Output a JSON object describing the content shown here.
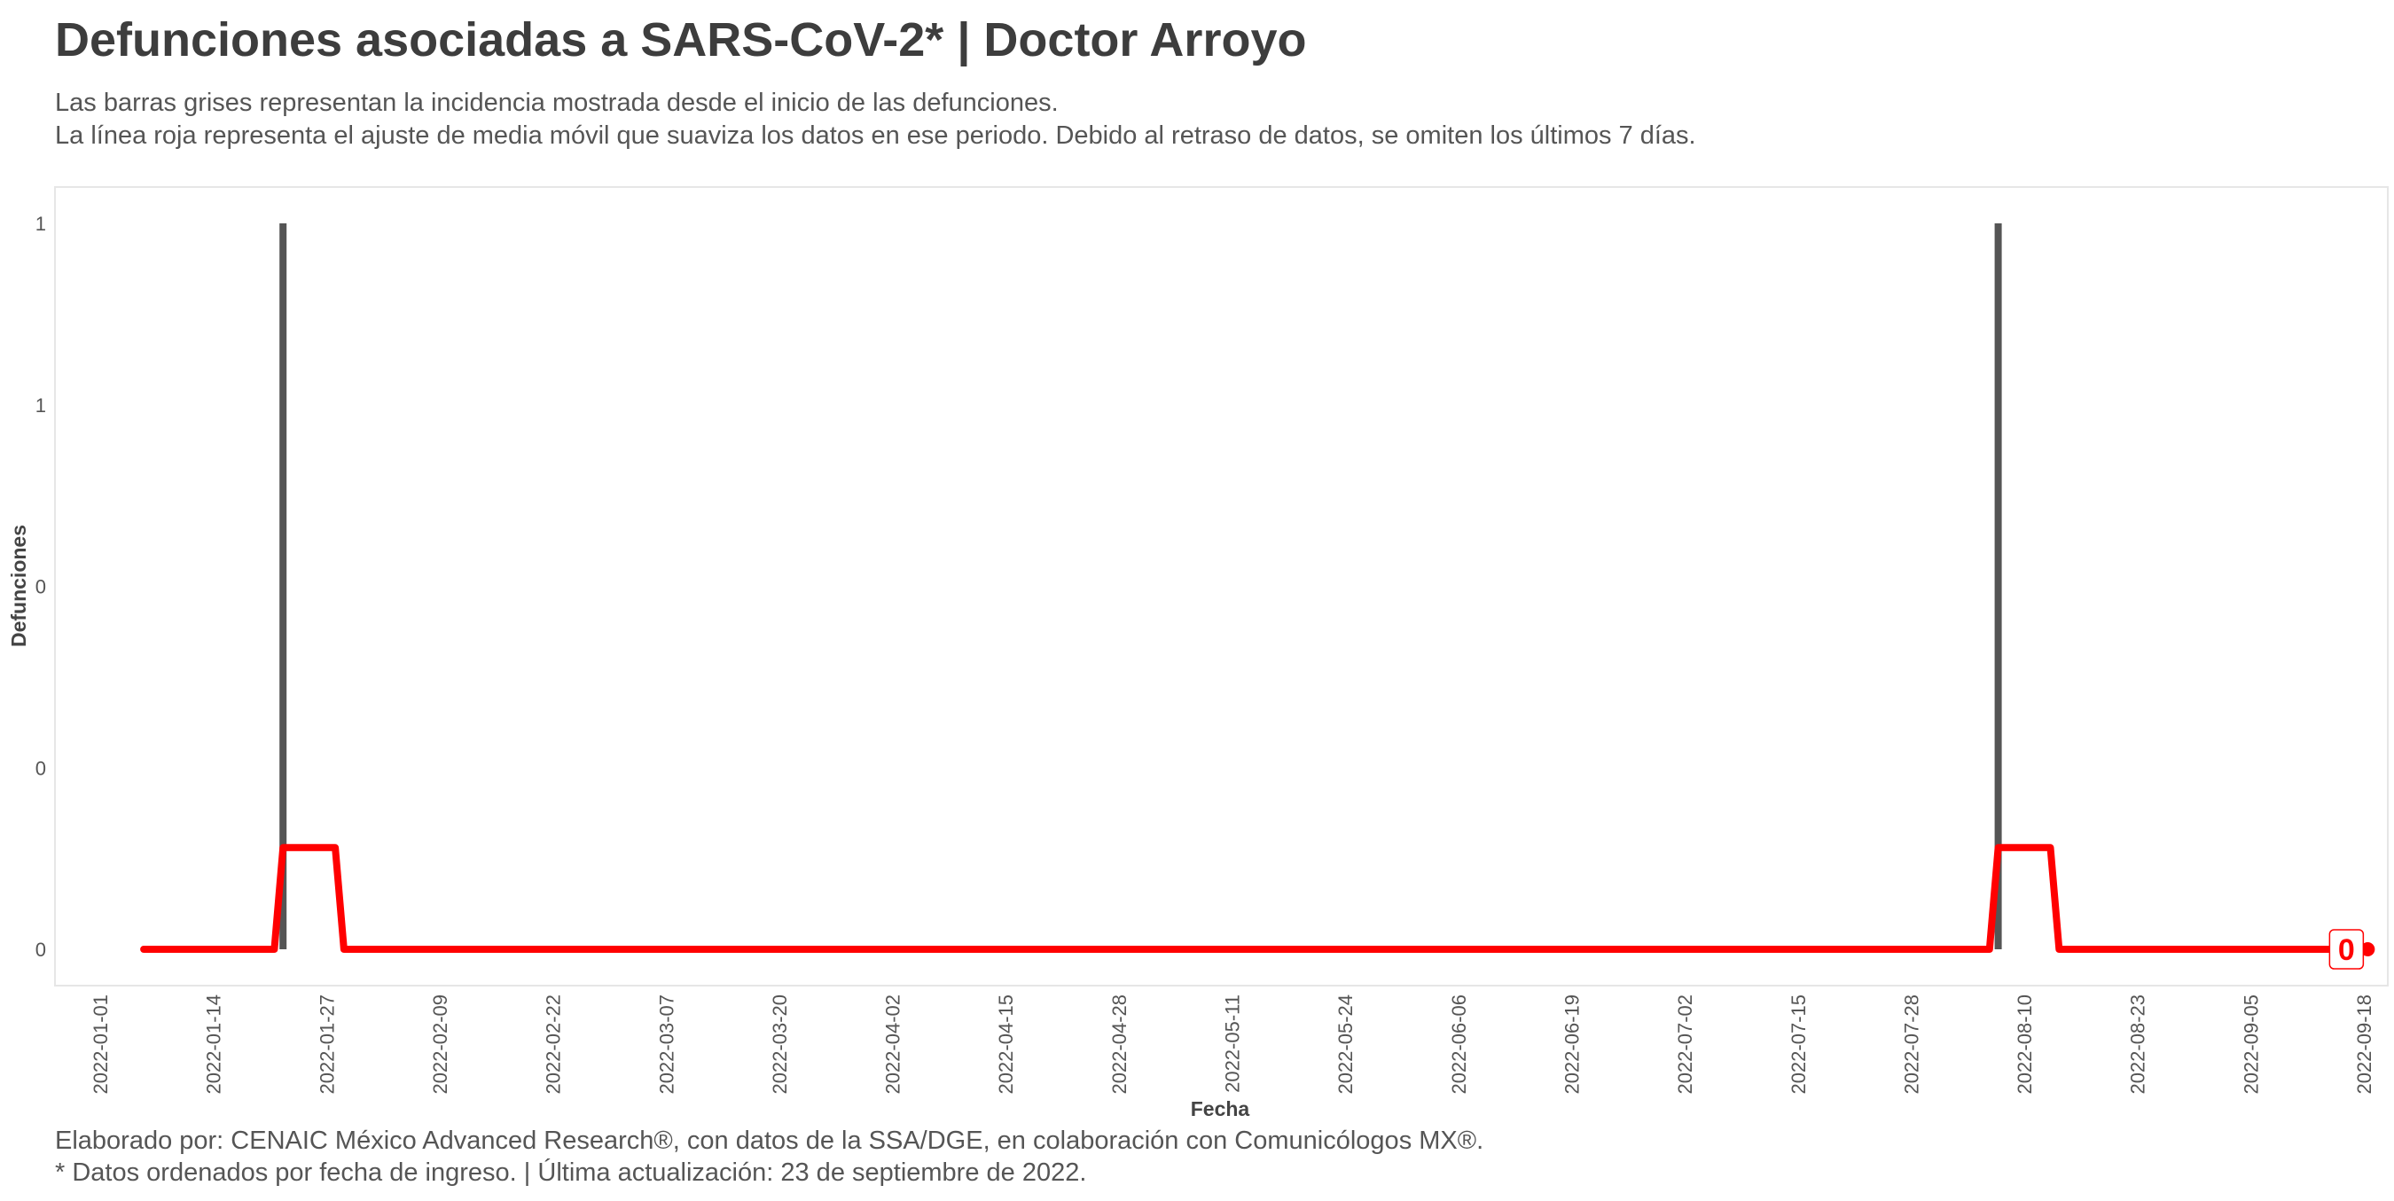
{
  "chart_data": {
    "type": "bar",
    "title": "Defunciones asociadas a SARS-CoV-2* | Doctor Arroyo",
    "subtitle": [
      "Las barras grises representan la incidencia mostrada desde el inicio de las defunciones.",
      "La línea roja representa el ajuste de media móvil que suaviza los datos en ese periodo. Debido al retraso de datos, se omiten los últimos 7 días."
    ],
    "xlabel": "Fecha",
    "ylabel": "Defunciones",
    "x_start": "2022-01-01",
    "x_end": "2022-09-18",
    "x_tick_labels": [
      "2022-01-01",
      "2022-01-14",
      "2022-01-27",
      "2022-02-09",
      "2022-02-22",
      "2022-03-07",
      "2022-03-20",
      "2022-04-02",
      "2022-04-15",
      "2022-04-28",
      "2022-05-11",
      "2022-05-24",
      "2022-06-06",
      "2022-06-19",
      "2022-07-02",
      "2022-07-15",
      "2022-07-28",
      "2022-08-10",
      "2022-08-23",
      "2022-09-05",
      "2022-09-18"
    ],
    "y_ticks": [
      0,
      0.25,
      0.5,
      0.75,
      1.0
    ],
    "y_tick_labels": [
      "0",
      "0",
      "0",
      "1",
      "1"
    ],
    "ylim": [
      0,
      1
    ],
    "grid": false,
    "bars": {
      "color": "#555555",
      "points": [
        {
          "date": "2022-01-22",
          "value": 1
        },
        {
          "date": "2022-08-07",
          "value": 1
        }
      ]
    },
    "moving_average": {
      "color": "#ff0000",
      "points": [
        {
          "date": "2022-01-06",
          "value": 0
        },
        {
          "date": "2022-01-21",
          "value": 0
        },
        {
          "date": "2022-01-22",
          "value": 0.14
        },
        {
          "date": "2022-01-28",
          "value": 0.14
        },
        {
          "date": "2022-01-29",
          "value": 0
        },
        {
          "date": "2022-08-06",
          "value": 0
        },
        {
          "date": "2022-08-07",
          "value": 0.14
        },
        {
          "date": "2022-08-13",
          "value": 0.14
        },
        {
          "date": "2022-08-14",
          "value": 0
        },
        {
          "date": "2022-09-15",
          "value": 0
        }
      ]
    },
    "end_label": "0",
    "end_point": {
      "date": "2022-09-16",
      "value": 0
    }
  },
  "caption": [
    "Elaborado por: CENAIC México Advanced Research®, con datos de la SSA/DGE, en colaboración con Comunicólogos MX®.",
    "* Datos ordenados por fecha de ingreso. | Última actualización: 23 de septiembre de 2022."
  ]
}
